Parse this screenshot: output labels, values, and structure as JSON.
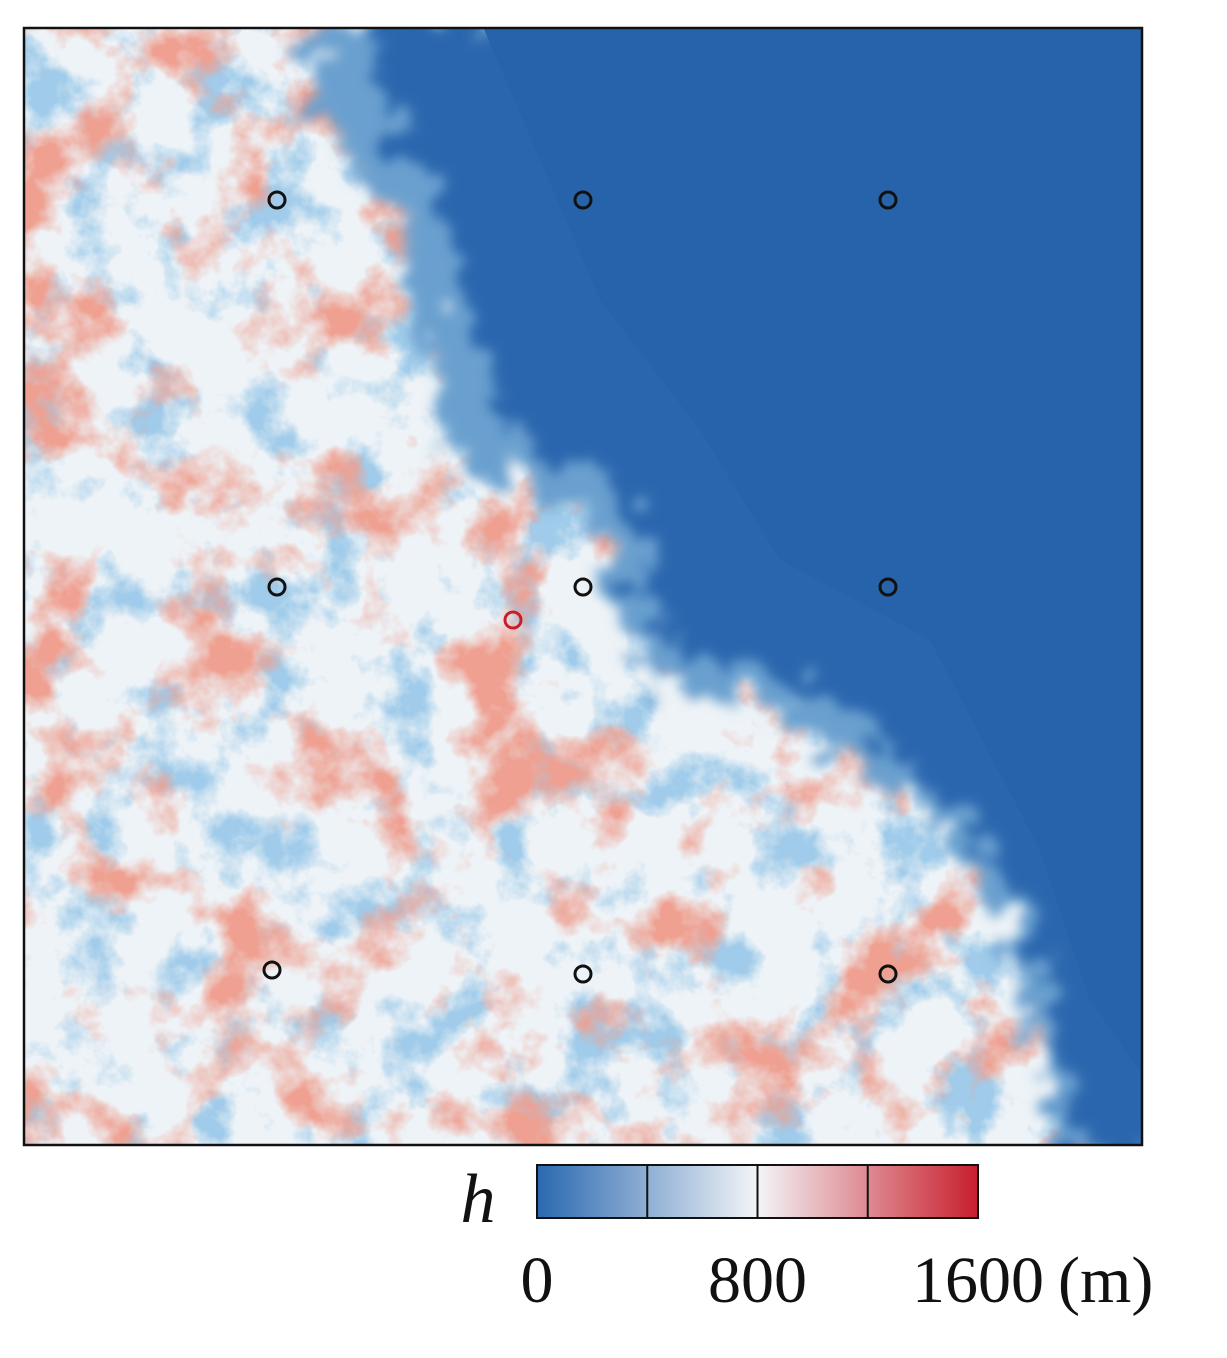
{
  "map": {
    "colorbar": {
      "label": "h",
      "unit": "(m)",
      "lim": [
        0,
        1600
      ],
      "ticks": [
        0,
        800,
        1600
      ],
      "divisions": [
        400,
        800,
        1200
      ],
      "colormap": [
        "#2a68b0",
        "#f3f5f7",
        "#c81e2c"
      ]
    }
  }
}
